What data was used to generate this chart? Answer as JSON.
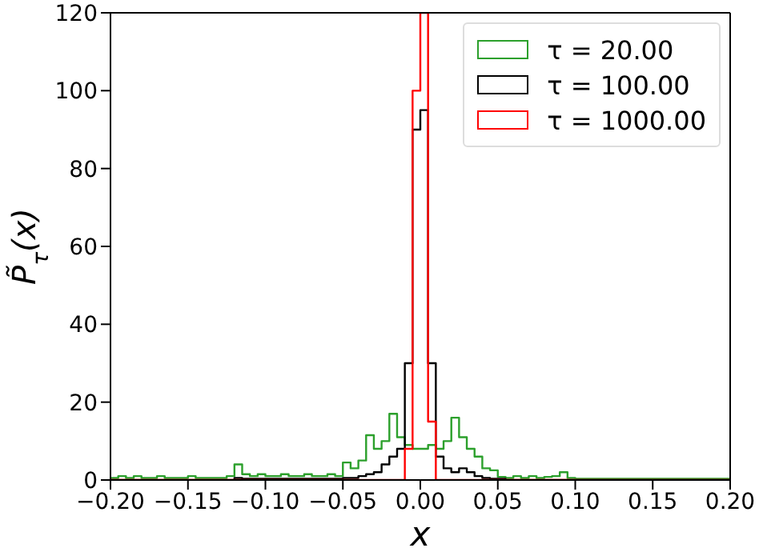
{
  "chart_data": {
    "type": "histogram",
    "xlabel": "x",
    "ylabel": "P̃$_{τ}$(x)",
    "bins": [
      -0.2,
      -0.195,
      -0.19,
      -0.185,
      -0.18,
      -0.175,
      -0.17,
      -0.165,
      -0.16,
      -0.155,
      -0.15,
      -0.145,
      -0.14,
      -0.135,
      -0.13,
      -0.125,
      -0.12,
      -0.115,
      -0.11,
      -0.105,
      -0.1,
      -0.095,
      -0.09,
      -0.085,
      -0.08,
      -0.075,
      -0.07,
      -0.065,
      -0.06,
      -0.055,
      -0.05,
      -0.045,
      -0.04,
      -0.035,
      -0.03,
      -0.025,
      -0.02,
      -0.015,
      -0.01,
      -0.005,
      0,
      0.005,
      0.01,
      0.015,
      0.02,
      0.025,
      0.03,
      0.035,
      0.04,
      0.045,
      0.05,
      0.055,
      0.06,
      0.065,
      0.07,
      0.075,
      0.08,
      0.085,
      0.09,
      0.095,
      0.1,
      0.105,
      0.11,
      0.115,
      0.12,
      0.125,
      0.13,
      0.135,
      0.14,
      0.145,
      0.15,
      0.155,
      0.16,
      0.165,
      0.17,
      0.175,
      0.18,
      0.185,
      0.19,
      0.195,
      0.2
    ],
    "series": [
      {
        "name": "τ = 20.00",
        "color": "#2ca02c",
        "values": [
          0.5,
          1,
          0.5,
          1,
          0.5,
          0.5,
          1,
          0.5,
          0.5,
          0.5,
          1,
          0.5,
          0.5,
          0.5,
          0.5,
          1,
          4,
          1.5,
          1,
          1.5,
          1,
          1,
          1.5,
          1,
          1,
          1.5,
          1,
          1,
          1.5,
          1,
          4.5,
          3,
          5,
          11.5,
          8,
          10,
          17,
          11,
          9,
          8,
          8,
          9,
          8,
          10,
          16,
          11,
          8,
          6,
          3,
          2.5,
          0.8,
          0.5,
          1,
          0.5,
          1,
          0.5,
          0.8,
          1,
          2,
          0.5,
          0.3,
          0.3,
          0.3,
          0.3,
          0.3,
          0.3,
          0.3,
          0.3,
          0.3,
          0.3,
          0.3,
          0.3,
          0.3,
          0.3,
          0.3,
          0.3,
          0.3,
          0.3,
          0.3,
          0.3
        ]
      },
      {
        "name": "τ = 100.00",
        "color": "#000000",
        "values": [
          0,
          0,
          0,
          0,
          0,
          0,
          0,
          0,
          0,
          0,
          0,
          0,
          0,
          0,
          0,
          0,
          0.5,
          0.3,
          0.3,
          0.3,
          0.3,
          0.3,
          0.3,
          0.3,
          0.3,
          0.3,
          0.3,
          0.3,
          0.3,
          0.3,
          0.5,
          0.5,
          1,
          1.5,
          2,
          4,
          6,
          8,
          30,
          90,
          95,
          30,
          6,
          3,
          2,
          3,
          2,
          1,
          0.5,
          0.3,
          0.3,
          0,
          0,
          0,
          0,
          0,
          0,
          0,
          0,
          0,
          0,
          0,
          0,
          0,
          0,
          0,
          0,
          0,
          0,
          0,
          0,
          0,
          0,
          0,
          0,
          0,
          0,
          0,
          0,
          0
        ]
      },
      {
        "name": "τ = 1000.00",
        "color": "#ff0000",
        "values": [
          0,
          0,
          0,
          0,
          0,
          0,
          0,
          0,
          0,
          0,
          0,
          0,
          0,
          0,
          0,
          0,
          0,
          0,
          0,
          0,
          0,
          0,
          0,
          0,
          0,
          0,
          0,
          0,
          0,
          0,
          0,
          0,
          0,
          0,
          0,
          0,
          0,
          0,
          8,
          100,
          120,
          15,
          0,
          0,
          0,
          0,
          0,
          0,
          0,
          0,
          0,
          0,
          0,
          0,
          0,
          0,
          0,
          0,
          0,
          0,
          0,
          0,
          0,
          0,
          0,
          0,
          0,
          0,
          0,
          0,
          0,
          0,
          0,
          0,
          0,
          0,
          0,
          0,
          0,
          0
        ]
      }
    ],
    "xlim": [
      -0.2,
      0.2
    ],
    "xticks": [
      {
        "value": -0.2,
        "label": "−0.20"
      },
      {
        "value": -0.15,
        "label": "−0.15"
      },
      {
        "value": -0.1,
        "label": "−0.10"
      },
      {
        "value": -0.05,
        "label": "−0.05"
      },
      {
        "value": 0,
        "label": "0.00"
      },
      {
        "value": 0.05,
        "label": "0.05"
      },
      {
        "value": 0.1,
        "label": "0.10"
      },
      {
        "value": 0.15,
        "label": "0.15"
      },
      {
        "value": 0.2,
        "label": "0.20"
      }
    ],
    "ylim": [
      0,
      120
    ],
    "yticks": [
      0,
      20,
      40,
      60,
      80,
      100,
      120
    ],
    "grid": false,
    "legend": "top right"
  }
}
